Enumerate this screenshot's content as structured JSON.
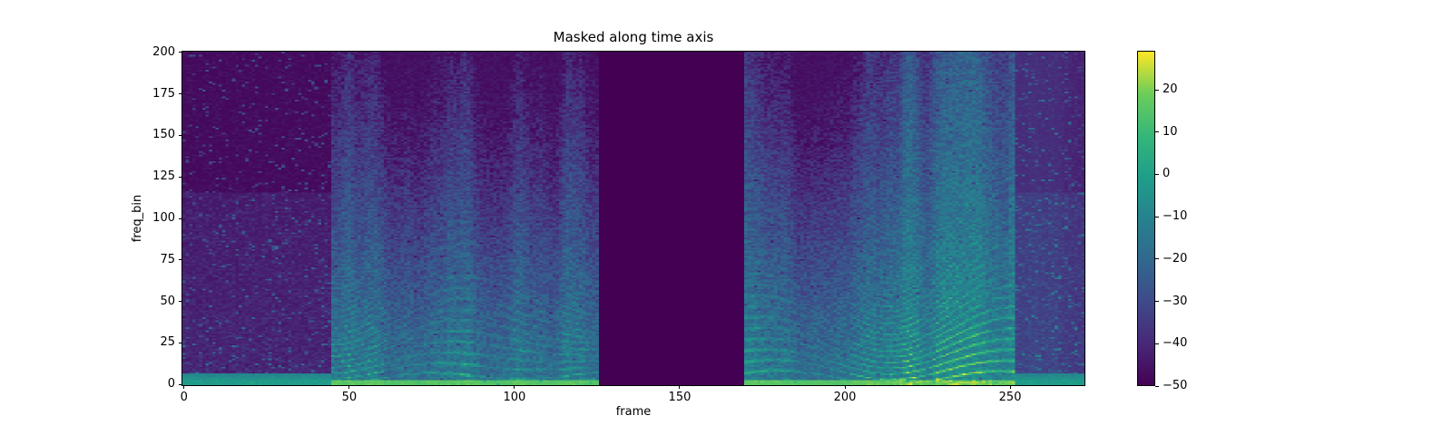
{
  "chart_data": {
    "type": "heatmap",
    "title": "Masked along time axis",
    "xlabel": "frame",
    "ylabel": "freq_bin",
    "x_ticks": [
      0,
      50,
      100,
      150,
      200,
      250
    ],
    "y_ticks": [
      0,
      25,
      50,
      75,
      100,
      125,
      150,
      175,
      200
    ],
    "x_extent": [
      -0.5,
      272.5
    ],
    "y_extent": [
      -0.5,
      200.5
    ],
    "n_frames": 273,
    "n_bins": 201,
    "grid": false,
    "colormap": "viridis",
    "color_range": {
      "vmin": -50,
      "vmax": 29
    },
    "colorbar": {
      "position": "right",
      "ticks": [
        {
          "v": 20,
          "label": "20"
        },
        {
          "v": 10,
          "label": "10"
        },
        {
          "v": 0,
          "label": "0"
        },
        {
          "v": -10,
          "label": "−10"
        },
        {
          "v": -20,
          "label": "−20"
        },
        {
          "v": -30,
          "label": "−30"
        },
        {
          "v": -40,
          "label": "−40"
        },
        {
          "v": -50,
          "label": "−50"
        }
      ]
    },
    "mask": {
      "axis": "time",
      "start_frame": 126,
      "end_frame": 170,
      "fill_value": -50
    },
    "segments": [
      {
        "start": 0,
        "end": 45,
        "kind": "background"
      },
      {
        "start": 45,
        "end": 126,
        "kind": "speech"
      },
      {
        "start": 126,
        "end": 170,
        "kind": "masked"
      },
      {
        "start": 170,
        "end": 252,
        "kind": "speech"
      },
      {
        "start": 252,
        "end": 273,
        "kind": "tail"
      }
    ],
    "viridis_stops": [
      [
        0.0,
        "#440154"
      ],
      [
        0.125,
        "#482878"
      ],
      [
        0.25,
        "#3e4a89"
      ],
      [
        0.375,
        "#31688e"
      ],
      [
        0.5,
        "#26828e"
      ],
      [
        0.625,
        "#1f9e89"
      ],
      [
        0.75,
        "#35b779"
      ],
      [
        0.875,
        "#6dcd59"
      ],
      [
        1.0,
        "#fde725"
      ]
    ]
  }
}
